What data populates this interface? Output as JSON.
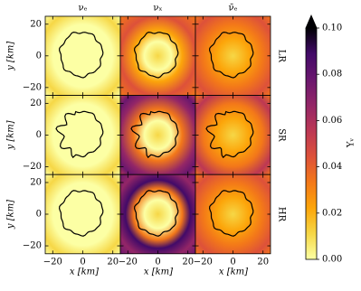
{
  "chart_data": {
    "type": "heatmap",
    "columns": [
      "νₑ",
      "νₓ",
      "ν̄ₑ"
    ],
    "rows": [
      "LR",
      "SR",
      "HR"
    ],
    "xlabel": "x [km]",
    "ylabel": "y [km]",
    "xlim": [
      -25,
      25
    ],
    "ylim": [
      -25,
      25
    ],
    "xticks": [
      {
        "value": -20,
        "label": "−20"
      },
      0,
      20
    ],
    "yticks": [
      {
        "value": -20,
        "label": "−20"
      },
      0,
      20
    ],
    "colorbar_label": "Yᵥ",
    "clim": [
      0,
      0.1
    ],
    "cticks": [
      {
        "value": 0,
        "label": "0.00"
      },
      {
        "value": 0.02,
        "label": "0.02"
      },
      {
        "value": 0.04,
        "label": "0.04"
      },
      {
        "value": 0.06,
        "label": "0.06"
      },
      {
        "value": 0.08,
        "label": "0.08"
      },
      {
        "value": 0.1,
        "label": "0.10"
      }
    ],
    "colormap": [
      "#fcffa4",
      "#f6d746",
      "#fca50a",
      "#f37819",
      "#dd513a",
      "#bc3754",
      "#932667",
      "#6a176e",
      "#420a68",
      "#000004"
    ]
  }
}
